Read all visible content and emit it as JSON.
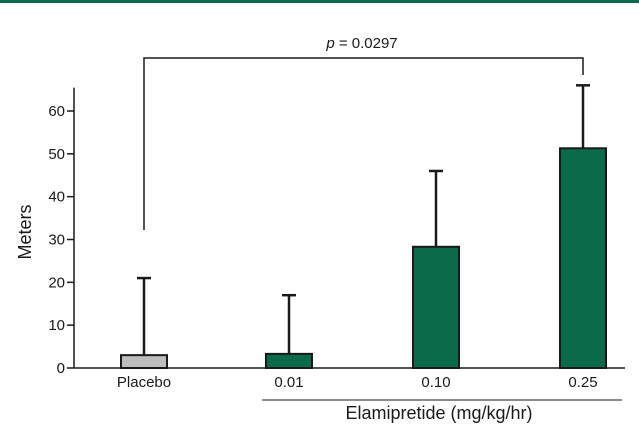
{
  "colors": {
    "accent_rule": "#0b6a4a",
    "placebo_bar": "#bdbdbd",
    "treatment_bar": "#0b6a4a",
    "outline": "#1a1a1a"
  },
  "chart_data": {
    "type": "bar",
    "categories": [
      "Placebo",
      "0.01",
      "0.10",
      "0.25"
    ],
    "values": [
      3,
      3.3,
      28.3,
      51.3
    ],
    "error_upper": [
      21,
      17,
      46,
      66
    ],
    "bar_colors": [
      "#bdbdbd",
      "#0b6a4a",
      "#0b6a4a",
      "#0b6a4a"
    ],
    "ylabel": "Meters",
    "group_label": "Elamipretide (mg/kg/hr)",
    "ylim": [
      0,
      65
    ],
    "yticks": [
      0,
      10,
      20,
      30,
      40,
      50,
      60
    ],
    "grid": false,
    "annotation": {
      "italic": "p",
      "text": " = 0.0297",
      "from_category": "Placebo",
      "to_category": "0.25"
    }
  }
}
